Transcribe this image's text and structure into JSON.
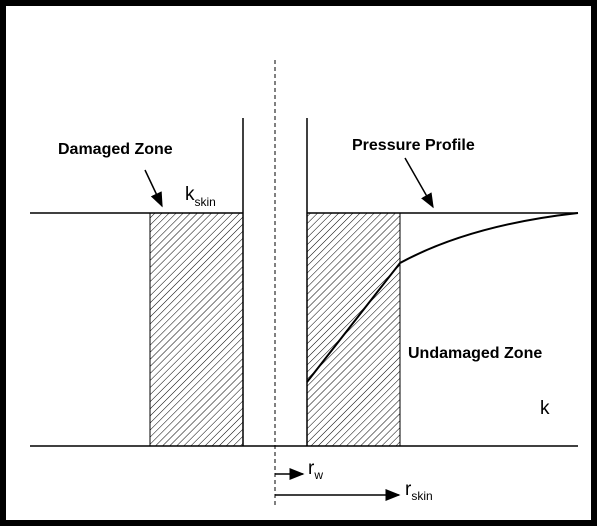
{
  "labels": {
    "damaged_zone": "Damaged Zone",
    "k_skin": {
      "base": "k",
      "sub": "skin"
    },
    "pressure_profile": "Pressure Profile",
    "undamaged_zone": "Undamaged Zone",
    "k": "k",
    "r_w": {
      "base": "r",
      "sub": "w"
    },
    "r_skin": {
      "base": "r",
      "sub": "skin"
    }
  }
}
